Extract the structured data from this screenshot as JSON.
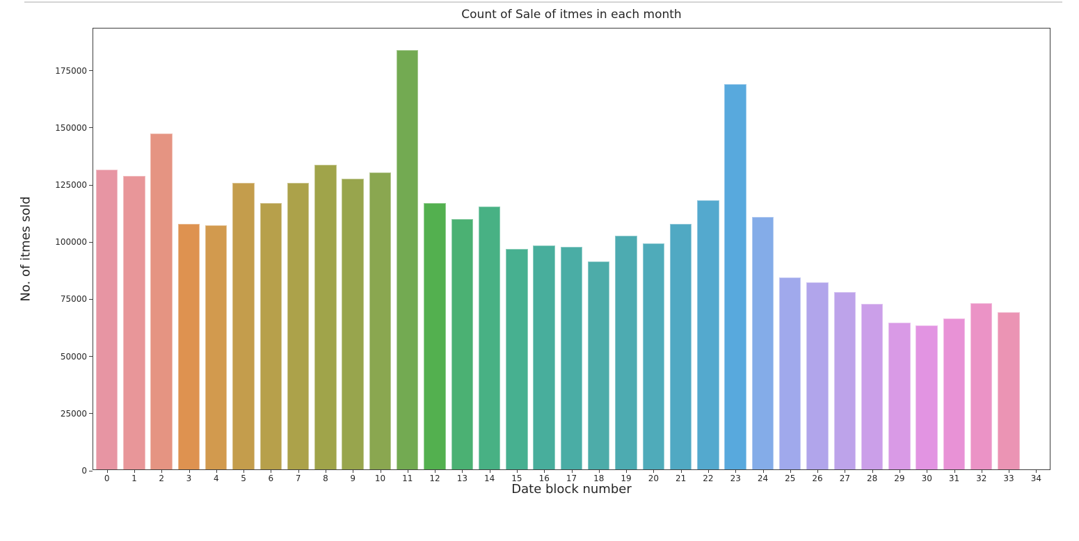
{
  "page": {
    "background": "#ffffff",
    "top_rule_color": "#d4d4d4",
    "text_color": "#262626",
    "spine_color": "#3c3c3c"
  },
  "chart_data": {
    "type": "bar",
    "title": "Count of Sale of itmes in each month",
    "xlabel": "Date block number",
    "ylabel": "No. of itmes sold",
    "categories": [
      0,
      1,
      2,
      3,
      4,
      5,
      6,
      7,
      8,
      9,
      10,
      11,
      12,
      13,
      14,
      15,
      16,
      17,
      18,
      19,
      20,
      21,
      22,
      23,
      24,
      25,
      26,
      27,
      28,
      29,
      30,
      31,
      32,
      33,
      34
    ],
    "values": [
      131600,
      128700,
      147300,
      107800,
      107100,
      125700,
      116900,
      125700,
      133600,
      127600,
      130200,
      183900,
      116900,
      110000,
      115400,
      96800,
      98200,
      97600,
      91200,
      102700,
      99300,
      107600,
      118200,
      169100,
      110900,
      84300,
      82200,
      77900,
      72600,
      64400,
      63100,
      66200,
      73000,
      68900,
      null
    ],
    "bar_colors": [
      "#e795a3",
      "#e89699",
      "#e59482",
      "#de9250",
      "#d29a4e",
      "#c49d4c",
      "#b7a04b",
      "#aca24a",
      "#a0a44a",
      "#98a54d",
      "#8aa750",
      "#73aa52",
      "#53b04f",
      "#4bb173",
      "#48b184",
      "#47b090",
      "#48ae9c",
      "#4aada5",
      "#4daca9",
      "#4dabb1",
      "#4fabba",
      "#50a9c3",
      "#54a9ce",
      "#58a9dd",
      "#84ace8",
      "#a0a9ec",
      "#b1a5eb",
      "#bda3ea",
      "#cb9fe9",
      "#d99ae6",
      "#e294e2",
      "#e892d6",
      "#eb93c6",
      "#eb94b4",
      null
    ],
    "yticks": [
      0,
      25000,
      50000,
      75000,
      100000,
      125000,
      150000,
      175000
    ],
    "ylim": [
      0,
      193500
    ],
    "bar_width_fraction": 0.8,
    "grid": false,
    "legend": null
  }
}
